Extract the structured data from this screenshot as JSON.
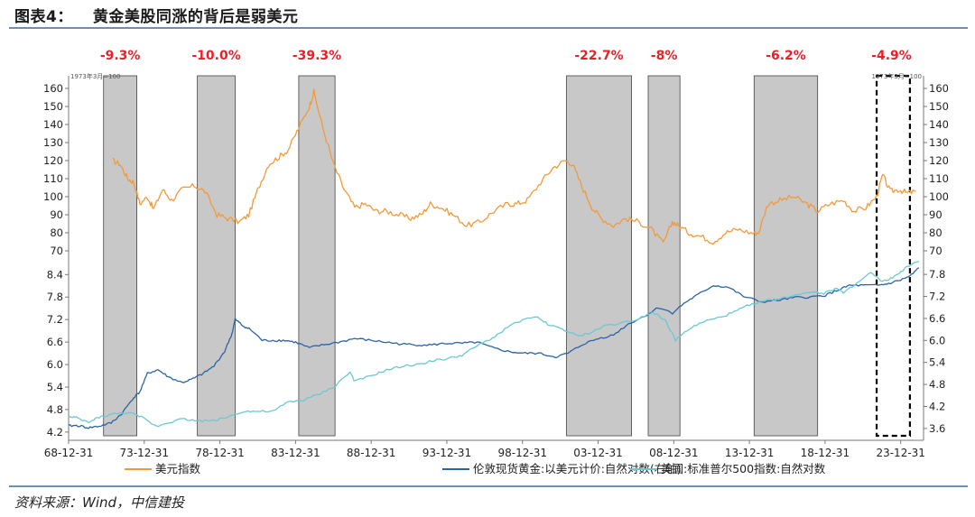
{
  "header": {
    "figure_no": "图表4：",
    "title": "黄金美股同涨的背后是弱美元"
  },
  "source": "资料来源：Wind，中信建投",
  "chart_data": {
    "type": "line",
    "panels": [
      {
        "name": "upper",
        "corner_note_left": "1973年3月=100",
        "corner_note_right": "1973年3月=100",
        "y_ticks": [
          70,
          80,
          90,
          100,
          110,
          120,
          130,
          140,
          150,
          160
        ],
        "ylim": [
          66,
          167
        ],
        "series": [
          {
            "name": "美元指数",
            "color": "#f29a3a",
            "x": [
              1971.9,
              1972.4,
              1972.9,
              1973.3,
              1973.7,
              1974.2,
              1974.6,
              1975.2,
              1975.8,
              1976.5,
              1977.3,
              1978.0,
              1978.8,
              1979.5,
              1980.3,
              1980.9,
              1981.5,
              1982.2,
              1982.9,
              1983.5,
              1984.2,
              1984.9,
              1985.2,
              1985.8,
              1986.5,
              1987.2,
              1987.9,
              1988.6,
              1989.3,
              1990.0,
              1990.8,
              1991.6,
              1992.3,
              1992.9,
              1993.6,
              1994.4,
              1995.3,
              1996.2,
              1997.1,
              1998.0,
              1998.6,
              1999.3,
              2000.2,
              2001.0,
              2001.8,
              2002.3,
              2002.9,
              2003.6,
              2004.2,
              2005.0,
              2005.8,
              2006.7,
              2007.5,
              2008.3,
              2008.9,
              2009.3,
              2010.0,
              2010.8,
              2011.6,
              2012.4,
              2013.2,
              2014.1,
              2014.6,
              2015.2,
              2016.0,
              2016.9,
              2017.8,
              2018.5,
              2019.3,
              2020.2,
              2020.9,
              2021.7,
              2022.4,
              2022.8,
              2023.3,
              2023.9,
              2024.4,
              2025.0
            ],
            "y": [
              120,
              118,
              110,
              108,
              96,
              100,
              93,
              104,
              98,
              104,
              106,
              103,
              90,
              88,
              86,
              90,
              104,
              118,
              122,
              126,
              138,
              150,
              158,
              138,
              118,
              104,
              94,
              96,
              92,
              92,
              90,
              88,
              90,
              96,
              94,
              90,
              84,
              86,
              92,
              96,
              96,
              98,
              108,
              116,
              120,
              118,
              106,
              94,
              88,
              84,
              88,
              86,
              82,
              74,
              86,
              84,
              80,
              78,
              75,
              80,
              82,
              80,
              80,
              96,
              98,
              100,
              96,
              92,
              96,
              98,
              92,
              94,
              100,
              112,
              103,
              104,
              102,
              103
            ]
          }
        ]
      },
      {
        "name": "lower",
        "y_ticks_left": [
          4.2,
          4.8,
          5.4,
          6.0,
          6.6,
          7.2,
          7.8,
          8.4
        ],
        "ylim_left": [
          4.1,
          8.6
        ],
        "y_ticks_right": [
          3.6,
          4.2,
          4.8,
          5.4,
          6.0,
          6.6,
          7.2,
          7.8
        ],
        "ylim_right": [
          3.4,
          8.0
        ],
        "series": [
          {
            "name": "伦敦现货黄金:以美元计价:自然对数(右轴)",
            "axis": "right",
            "color": "#2a64a8",
            "x": [
              1968.99,
              1969.6,
              1970.3,
              1971.0,
              1971.8,
              1972.5,
              1973.2,
              1973.7,
              1974.2,
              1974.9,
              1975.6,
              1976.5,
              1977.2,
              1977.9,
              1978.6,
              1979.3,
              1979.8,
              1980.0,
              1980.5,
              1981.0,
              1981.8,
              1982.5,
              1983.3,
              1984.0,
              1984.9,
              1985.7,
              1986.8,
              1987.9,
              1989.0,
              1990.0,
              1991.0,
              1992.0,
              1993.0,
              1994.0,
              1995.0,
              1996.0,
              1997.0,
              1998.0,
              1999.0,
              2000.0,
              2001.2,
              2002.0,
              2003.0,
              2004.0,
              2005.0,
              2006.0,
              2007.0,
              2008.0,
              2008.9,
              2009.8,
              2010.6,
              2011.6,
              2012.6,
              2013.6,
              2014.8,
              2016.0,
              2017.0,
              2018.0,
              2019.0,
              2019.9,
              2020.6,
              2021.5,
              2022.5,
              2023.2,
              2024.0,
              2024.6,
              2025.2
            ],
            "y": [
              3.67,
              3.68,
              3.62,
              3.66,
              3.75,
              4.0,
              4.4,
              4.6,
              5.1,
              5.2,
              5.0,
              4.85,
              4.95,
              5.1,
              5.3,
              5.7,
              6.2,
              6.58,
              6.4,
              6.3,
              6.0,
              6.0,
              6.0,
              5.95,
              5.8,
              5.87,
              5.95,
              6.05,
              6.0,
              5.95,
              5.9,
              5.88,
              5.88,
              5.92,
              5.92,
              5.95,
              5.8,
              5.7,
              5.65,
              5.65,
              5.55,
              5.65,
              5.9,
              6.05,
              6.15,
              6.45,
              6.65,
              6.9,
              6.75,
              7.05,
              7.25,
              7.5,
              7.45,
              7.2,
              7.05,
              7.1,
              7.17,
              7.18,
              7.23,
              7.38,
              7.5,
              7.5,
              7.5,
              7.55,
              7.65,
              7.75,
              7.98
            ]
          },
          {
            "name": "美国:标准普尔500指数:自然对数",
            "axis": "left",
            "color": "#6cc8d2",
            "x": [
              1968.99,
              1969.5,
              1970.3,
              1971.0,
              1972.0,
              1972.9,
              1973.8,
              1974.8,
              1975.5,
              1976.5,
              1977.5,
              1978.5,
              1979.5,
              1980.5,
              1981.5,
              1982.5,
              1983.5,
              1984.5,
              1985.5,
              1986.5,
              1987.6,
              1987.9,
              1989.0,
              1990.0,
              1991.0,
              1992.0,
              1993.0,
              1994.0,
              1995.0,
              1996.0,
              1997.0,
              1998.0,
              1999.0,
              2000.0,
              2000.8,
              2001.6,
              2002.7,
              2003.5,
              2004.5,
              2005.5,
              2006.5,
              2007.6,
              2008.4,
              2009.1,
              2010.0,
              2011.0,
              2012.0,
              2013.0,
              2014.0,
              2015.0,
              2016.0,
              2017.0,
              2018.0,
              2018.9,
              2019.8,
              2020.2,
              2020.9,
              2022.0,
              2022.8,
              2023.6,
              2024.4,
              2025.2
            ],
            "y": [
              4.6,
              4.58,
              4.45,
              4.6,
              4.68,
              4.72,
              4.6,
              4.35,
              4.45,
              4.55,
              4.5,
              4.5,
              4.6,
              4.75,
              4.75,
              4.75,
              5.0,
              5.05,
              5.2,
              5.4,
              5.8,
              5.55,
              5.7,
              5.85,
              5.95,
              6.0,
              6.1,
              6.15,
              6.25,
              6.5,
              6.7,
              7.0,
              7.2,
              7.25,
              7.05,
              6.95,
              6.75,
              6.85,
              7.05,
              7.1,
              7.2,
              7.4,
              7.2,
              6.65,
              6.95,
              7.15,
              7.25,
              7.4,
              7.6,
              7.7,
              7.75,
              7.85,
              7.95,
              7.9,
              8.05,
              7.9,
              8.1,
              8.45,
              8.2,
              8.35,
              8.6,
              8.75
            ]
          }
        ]
      }
    ],
    "x_ticks": [
      "68-12-31",
      "73-12-31",
      "78-12-31",
      "83-12-31",
      "88-12-31",
      "93-12-31",
      "98-12-31",
      "03-12-31",
      "08-12-31",
      "13-12-31",
      "18-12-31",
      "23-12-31"
    ],
    "xlim": [
      1968.99,
      2025.5
    ],
    "shaded_periods": [
      {
        "start": 1971.3,
        "end": 1973.5,
        "label": "-9.3%"
      },
      {
        "start": 1977.5,
        "end": 1980.0,
        "label": "-10.0%"
      },
      {
        "start": 1984.2,
        "end": 1986.6,
        "label": "-39.3%"
      },
      {
        "start": 2001.9,
        "end": 2006.2,
        "label": "-22.7%"
      },
      {
        "start": 2007.3,
        "end": 2009.4,
        "label": "-8%"
      },
      {
        "start": 2014.3,
        "end": 2018.5,
        "label": "-6.2%"
      }
    ],
    "highlight_period": {
      "start": 2022.4,
      "end": 2024.6,
      "label": "-4.9%"
    },
    "label_color": "#e8202a",
    "shade_color": "#c8c8c8"
  }
}
